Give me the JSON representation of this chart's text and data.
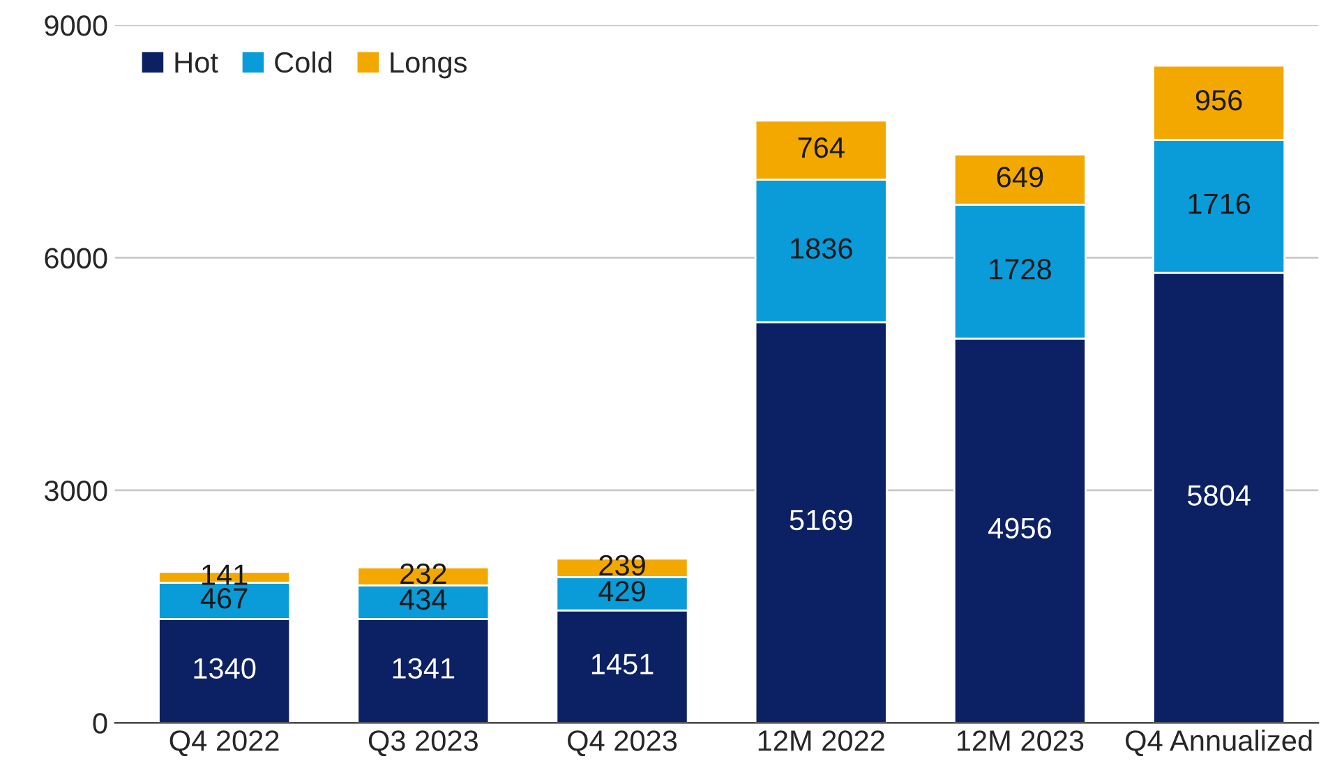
{
  "chart_data": {
    "type": "bar",
    "stacked": true,
    "categories": [
      "Q4 2022",
      "Q3 2023",
      "Q4 2023",
      "12M 2022",
      "12M 2023",
      "Q4 Annualized"
    ],
    "series": [
      {
        "name": "Hot",
        "color": "#0c2163",
        "values": [
          1340,
          1341,
          1451,
          5169,
          4956,
          5804
        ]
      },
      {
        "name": "Cold",
        "color": "#0a9bd9",
        "values": [
          467,
          434,
          429,
          1836,
          1728,
          1716
        ]
      },
      {
        "name": "Longs",
        "color": "#f3a800",
        "values": [
          141,
          232,
          239,
          764,
          649,
          956
        ]
      }
    ],
    "ylim": [
      0,
      9000
    ],
    "yticks": [
      0,
      3000,
      6000,
      9000
    ],
    "grid": "y",
    "legend": "top left",
    "data_labels": true
  }
}
